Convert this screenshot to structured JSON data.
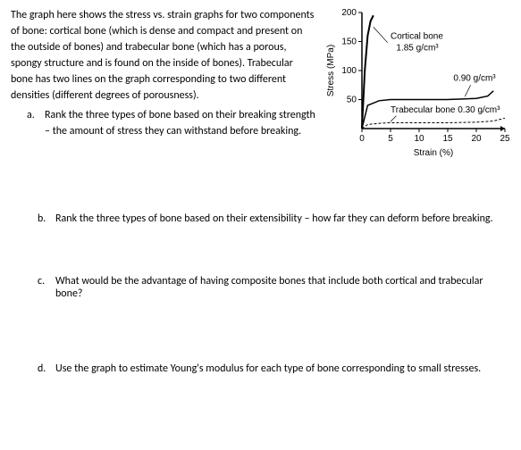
{
  "intro": "The graph here shows the stress vs. strain graphs for two components of bone: cortical bone (which is dense and compact and present on the outside of bones) and trabecular bone (which has a porous, spongy structure and is found on the inside of bones). Trabecular bone has two lines on the graph corresponding to two different densities (different degrees of porousness).",
  "qa_letter": "a.",
  "qa_text": "Rank the three types of bone based on their breaking strength – the amount of stress they can withstand before breaking.",
  "qb_letter": "b.",
  "qb_text": "Rank the three types of bone based on their extensibility – how far they can deform before breaking.",
  "qc_letter": "c.",
  "qc_text": "What would be the advantage of having composite bones that include both cortical and trabecular bone?",
  "qd_letter": "d.",
  "qd_text": "Use the graph to estimate Young's modulus for each type of bone corresponding to small stresses.",
  "chart": {
    "type": "line",
    "xlabel": "Strain (%)",
    "ylabel": "Stress (MPa)",
    "label_fontsize": 10,
    "xlim": [
      0,
      25
    ],
    "ylim": [
      0,
      200
    ],
    "xtick_step": 5,
    "ytick_step": 50,
    "xticks": [
      0,
      5,
      10,
      15,
      20,
      25
    ],
    "yticks": [
      0,
      50,
      100,
      150,
      200
    ],
    "background_color": "#ffffff",
    "axis_color": "#000000",
    "tick_fontsize": 10,
    "annotations": {
      "cortical": {
        "label": "Cortical bone",
        "density": "1.85 g/cm³"
      },
      "trab_high": {
        "label": "",
        "density": "0.90 g/cm³"
      },
      "trab_low": {
        "label": "Trabecular bone",
        "density": "0.30 g/cm³"
      }
    },
    "series": {
      "cortical": {
        "color": "#000000",
        "line_width": 2,
        "points_x": [
          0,
          0.5,
          1,
          1.5,
          2
        ],
        "points_y": [
          0,
          100,
          160,
          185,
          195
        ]
      },
      "trab_high": {
        "color": "#000000",
        "line_width": 1.5,
        "points_x": [
          0,
          1,
          3,
          5,
          10,
          15,
          20,
          22,
          23
        ],
        "points_y": [
          0,
          40,
          48,
          50,
          50,
          50,
          52,
          56,
          65
        ]
      },
      "trab_low": {
        "color": "#000000",
        "line_width": 1,
        "dash": "3,2",
        "points_x": [
          0,
          1,
          3,
          5,
          10,
          15,
          20,
          23,
          25
        ],
        "points_y": [
          0,
          7,
          9,
          10,
          10,
          10,
          11,
          13,
          18
        ]
      }
    }
  }
}
